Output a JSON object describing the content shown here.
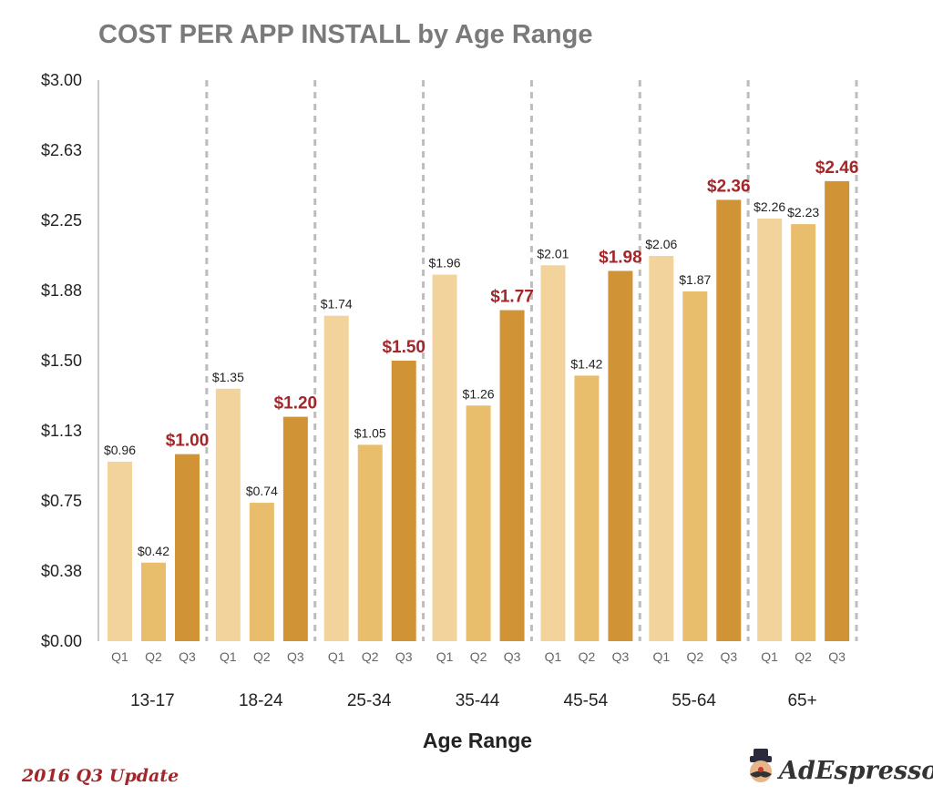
{
  "chart_data": {
    "type": "bar",
    "title": "COST PER APP INSTALL by Age Range",
    "xlabel": "Age Range",
    "ylabel": "",
    "ylim": [
      0,
      3.0
    ],
    "yticks": [
      "$0.00",
      "$0.38",
      "$0.75",
      "$1.13",
      "$1.50",
      "$1.88",
      "$2.25",
      "$2.63",
      "$3.00"
    ],
    "categories": [
      "13-17",
      "18-24",
      "25-34",
      "35-44",
      "45-54",
      "55-64",
      "65+"
    ],
    "series": [
      {
        "name": "Q1",
        "color": "#f3d39c",
        "values": [
          0.96,
          1.35,
          1.74,
          1.96,
          2.01,
          2.06,
          2.26
        ],
        "labels": [
          "$0.96",
          "$1.35",
          "$1.74",
          "$1.96",
          "$2.01",
          "$2.06",
          "$2.26"
        ]
      },
      {
        "name": "Q2",
        "color": "#e8bd6c",
        "values": [
          0.42,
          0.74,
          1.05,
          1.26,
          1.42,
          1.87,
          2.23
        ],
        "labels": [
          "$0.42",
          "$0.74",
          "$1.05",
          "$1.26",
          "$1.42",
          "$1.87",
          "$2.23"
        ]
      },
      {
        "name": "Q3",
        "color": "#d09335",
        "values": [
          1.0,
          1.2,
          1.5,
          1.77,
          1.98,
          2.36,
          2.46
        ],
        "labels": [
          "$1.00",
          "$1.20",
          "$1.50",
          "$1.77",
          "$1.98",
          "$2.36",
          "$2.46"
        ]
      }
    ],
    "highlight_color": "#a3262a",
    "grid": "vertical-dashed",
    "legend": "none"
  },
  "footer": {
    "update_label": "2016 Q3 Update",
    "brand": "AdEspresso"
  }
}
